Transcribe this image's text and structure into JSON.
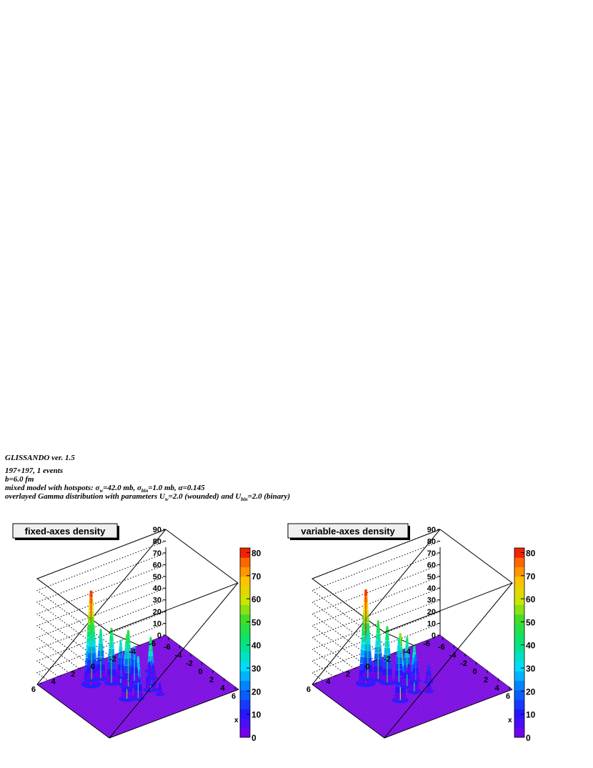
{
  "header": {
    "line1": "GLISSANDO ver.  1.5",
    "line2": "197+197, 1 events",
    "line3": "b=6.0 fm",
    "line4": {
      "prefix": "mixed model with hotspots: ",
      "sigma": "σ",
      "w_sub": "w",
      "w_val": "=42.0 mb, ",
      "bin_sub": "bin",
      "bin_val": "=1.0 mb, ",
      "alpha": "α=0.145"
    },
    "line5": {
      "prefix": "overlayed Gamma distribution with parameters U",
      "w_sub": "w",
      "w_val": "=2.0 (wounded) and U",
      "bin_sub": "bin",
      "bin_val": "=2.0 (binary)"
    }
  },
  "chart_data": [
    {
      "type": "surface3d",
      "title": "fixed-axes density",
      "x_ticks": [
        "-6",
        "-4",
        "-2",
        "0",
        "2",
        "4",
        "6"
      ],
      "y_ticks": [
        "6",
        "4",
        "2",
        "0",
        "-2",
        "-4",
        "-6"
      ],
      "z_ticks": [
        "0",
        "10",
        "20",
        "30",
        "40",
        "50",
        "60",
        "70",
        "80",
        "90"
      ],
      "x_axis_label": "x",
      "zlim": [
        0,
        90
      ],
      "xlim": [
        -6.5,
        6.5
      ],
      "ylim": [
        -6.5,
        6.5
      ],
      "colorbar": {
        "ticks": [
          "0",
          "10",
          "20",
          "30",
          "40",
          "50",
          "60",
          "70",
          "80"
        ],
        "range": [
          0,
          82
        ]
      },
      "peaks": [
        {
          "x": -3.2,
          "y": 2.9,
          "z": 80
        },
        {
          "x": -4.0,
          "y": 2.4,
          "z": 50
        },
        {
          "x": -3.6,
          "y": 1.7,
          "z": 42
        },
        {
          "x": -2.2,
          "y": 1.4,
          "z": 47
        },
        {
          "x": -1.6,
          "y": 0.8,
          "z": 37
        },
        {
          "x": -0.6,
          "y": 0.6,
          "z": 48
        },
        {
          "x": -1.1,
          "y": -0.3,
          "z": 30
        },
        {
          "x": -2.6,
          "y": 0.2,
          "z": 22
        },
        {
          "x": 1.3,
          "y": 1.8,
          "z": 55
        },
        {
          "x": 1.9,
          "y": 1.0,
          "z": 36
        },
        {
          "x": 1.3,
          "y": -0.6,
          "z": 45
        },
        {
          "x": 0.4,
          "y": -1.2,
          "z": 20
        },
        {
          "x": -0.4,
          "y": -1.8,
          "z": 12
        },
        {
          "x": 2.6,
          "y": -0.8,
          "z": 10
        },
        {
          "x": -1.8,
          "y": -2.2,
          "z": 8
        }
      ]
    },
    {
      "type": "surface3d",
      "title": "variable-axes density",
      "x_ticks": [
        "-6",
        "-4",
        "-2",
        "0",
        "2",
        "4",
        "6"
      ],
      "y_ticks": [
        "6",
        "4",
        "2",
        "0",
        "-2",
        "-4",
        "-6"
      ],
      "z_ticks": [
        "0",
        "10",
        "20",
        "30",
        "40",
        "50",
        "60",
        "70",
        "80",
        "90"
      ],
      "x_axis_label": "x",
      "zlim": [
        0,
        90
      ],
      "xlim": [
        -6.5,
        6.5
      ],
      "ylim": [
        -6.5,
        6.5
      ],
      "colorbar": {
        "ticks": [
          "0",
          "10",
          "20",
          "30",
          "40",
          "50",
          "60",
          "70",
          "80"
        ],
        "range": [
          0,
          82
        ]
      },
      "peaks": [
        {
          "x": -3.4,
          "y": 2.8,
          "z": 80
        },
        {
          "x": -4.1,
          "y": 2.2,
          "z": 46
        },
        {
          "x": -3.3,
          "y": 1.6,
          "z": 50
        },
        {
          "x": -2.2,
          "y": 1.3,
          "z": 48
        },
        {
          "x": -1.5,
          "y": 0.5,
          "z": 38
        },
        {
          "x": -0.4,
          "y": 0.3,
          "z": 42
        },
        {
          "x": 1.4,
          "y": 2.0,
          "z": 57
        },
        {
          "x": 0.9,
          "y": 0.3,
          "z": 40
        },
        {
          "x": -0.8,
          "y": -0.8,
          "z": 22
        },
        {
          "x": 0.3,
          "y": -1.5,
          "z": 15
        },
        {
          "x": 1.8,
          "y": -0.7,
          "z": 10
        },
        {
          "x": -2.4,
          "y": -1.0,
          "z": 8
        }
      ]
    }
  ]
}
